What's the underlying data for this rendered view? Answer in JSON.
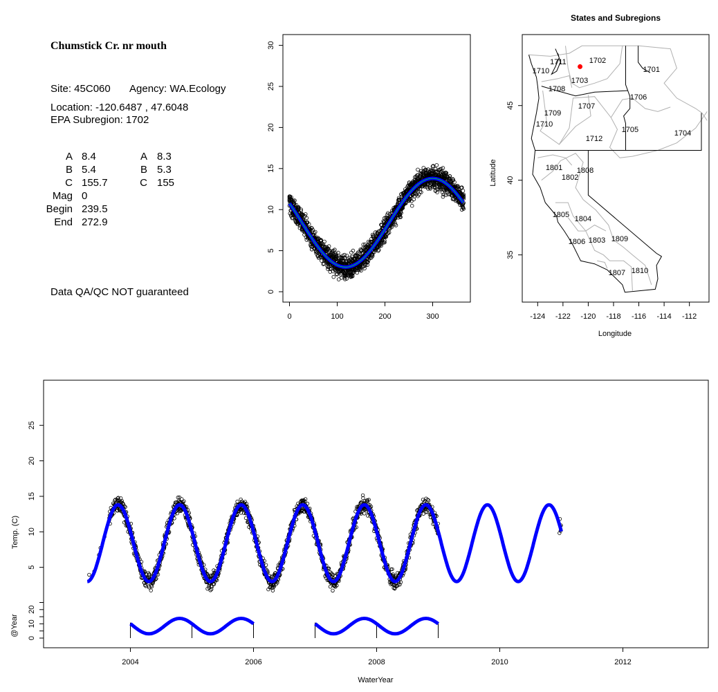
{
  "info": {
    "title": "Chumstick Cr. nr mouth",
    "site": "Site: 45C060",
    "agency": "Agency: WA.Ecology",
    "location": "Location: -120.6487 , 47.6048",
    "subregion": "EPA Subregion: 1702",
    "stats_left": [
      {
        "label": "A",
        "value": "8.4"
      },
      {
        "label": "B",
        "value": "5.4"
      },
      {
        "label": "C",
        "value": "155.7"
      },
      {
        "label": "Mag",
        "value": "0"
      },
      {
        "label": "Begin",
        "value": "239.5"
      },
      {
        "label": "End",
        "value": "272.9"
      }
    ],
    "stats_right": [
      {
        "label": "A",
        "value": "8.3"
      },
      {
        "label": "B",
        "value": "5.3"
      },
      {
        "label": "C",
        "value": "155"
      }
    ],
    "disclaimer": "Data QA/QC NOT guaranteed",
    "disclaimer_color": "#b22222"
  },
  "chart_data": [
    {
      "type": "scatter",
      "title": "",
      "xlabel": "",
      "ylabel": "",
      "xlim": [
        -5,
        385
      ],
      "ylim": [
        -1,
        31
      ],
      "xticks": [
        "0",
        "100",
        "200",
        "300"
      ],
      "yticks": [
        "0",
        "5",
        "10",
        "15",
        "20",
        "25",
        "30"
      ],
      "fit": {
        "A": 8.4,
        "B": 5.4,
        "peak_day": 300,
        "period": 365,
        "color": "#0000ff"
      },
      "points_color": "#000000",
      "x_range": [
        0,
        365
      ]
    },
    {
      "type": "map",
      "title": "States and Subregions",
      "xlabel": "Longitude",
      "ylabel": "Latitude",
      "xlim": [
        -125.2,
        -110.4
      ],
      "ylim": [
        32.2,
        49.5
      ],
      "xticks": [
        "-124",
        "-122",
        "-120",
        "-118",
        "-116",
        "-114",
        "-112"
      ],
      "yticks": [
        "35",
        "40",
        "45"
      ],
      "site": {
        "lon": -120.6487,
        "lat": 47.6048,
        "color": "#ff0000"
      },
      "regions": [
        {
          "id": "1702",
          "lon": -119.26,
          "lat": 48.04
        },
        {
          "id": "1701",
          "lon": -115.0,
          "lat": 47.44
        },
        {
          "id": "1711",
          "lon": -122.38,
          "lat": 47.95
        },
        {
          "id": "1710",
          "lon": -123.74,
          "lat": 47.35
        },
        {
          "id": "1703",
          "lon": -120.68,
          "lat": 46.7
        },
        {
          "id": "1708",
          "lon": -122.48,
          "lat": 46.14
        },
        {
          "id": "1706",
          "lon": -116.03,
          "lat": 45.59
        },
        {
          "id": "1707",
          "lon": -120.13,
          "lat": 44.99
        },
        {
          "id": "1709",
          "lon": -122.81,
          "lat": 44.52
        },
        {
          "id": "1710",
          "lon": -123.47,
          "lat": 43.78
        },
        {
          "id": "1705",
          "lon": -116.69,
          "lat": 43.41
        },
        {
          "id": "1704",
          "lon": -112.53,
          "lat": 43.18
        },
        {
          "id": "1712",
          "lon": -119.53,
          "lat": 42.81
        },
        {
          "id": "1801",
          "lon": -122.7,
          "lat": 40.87
        },
        {
          "id": "1808",
          "lon": -120.24,
          "lat": 40.68
        },
        {
          "id": "1802",
          "lon": -121.44,
          "lat": 40.22
        },
        {
          "id": "1805",
          "lon": -122.16,
          "lat": 37.72
        },
        {
          "id": "1804",
          "lon": -120.41,
          "lat": 37.44
        },
        {
          "id": "1803",
          "lon": -119.31,
          "lat": 36.01
        },
        {
          "id": "1809",
          "lon": -117.51,
          "lat": 36.1
        },
        {
          "id": "1806",
          "lon": -120.9,
          "lat": 35.91
        },
        {
          "id": "1810",
          "lon": -115.92,
          "lat": 33.97
        },
        {
          "id": "1807",
          "lon": -117.73,
          "lat": 33.83
        }
      ]
    },
    {
      "type": "scatter",
      "title": "",
      "xlabel": "WaterYear",
      "ylabel": "Temp. (C)",
      "ylabel2": "@Year",
      "xlim": [
        2002.4,
        2013.5
      ],
      "xticks": [
        "2004",
        "2006",
        "2008",
        "2010",
        "2012"
      ],
      "yticks": [
        "5",
        "10",
        "15",
        "20",
        "25"
      ],
      "yticks2": [
        "0",
        "10",
        "20"
      ],
      "fit": {
        "A": 8.4,
        "B": 5.4,
        "peak_phase": 0.8,
        "range": [
          2003.3,
          2011.0
        ],
        "color": "#0000ff"
      },
      "data_range": [
        2003.3,
        2009.0
      ],
      "year_fits": [
        [
          2004,
          2006
        ],
        [
          2007,
          2009
        ]
      ]
    }
  ]
}
